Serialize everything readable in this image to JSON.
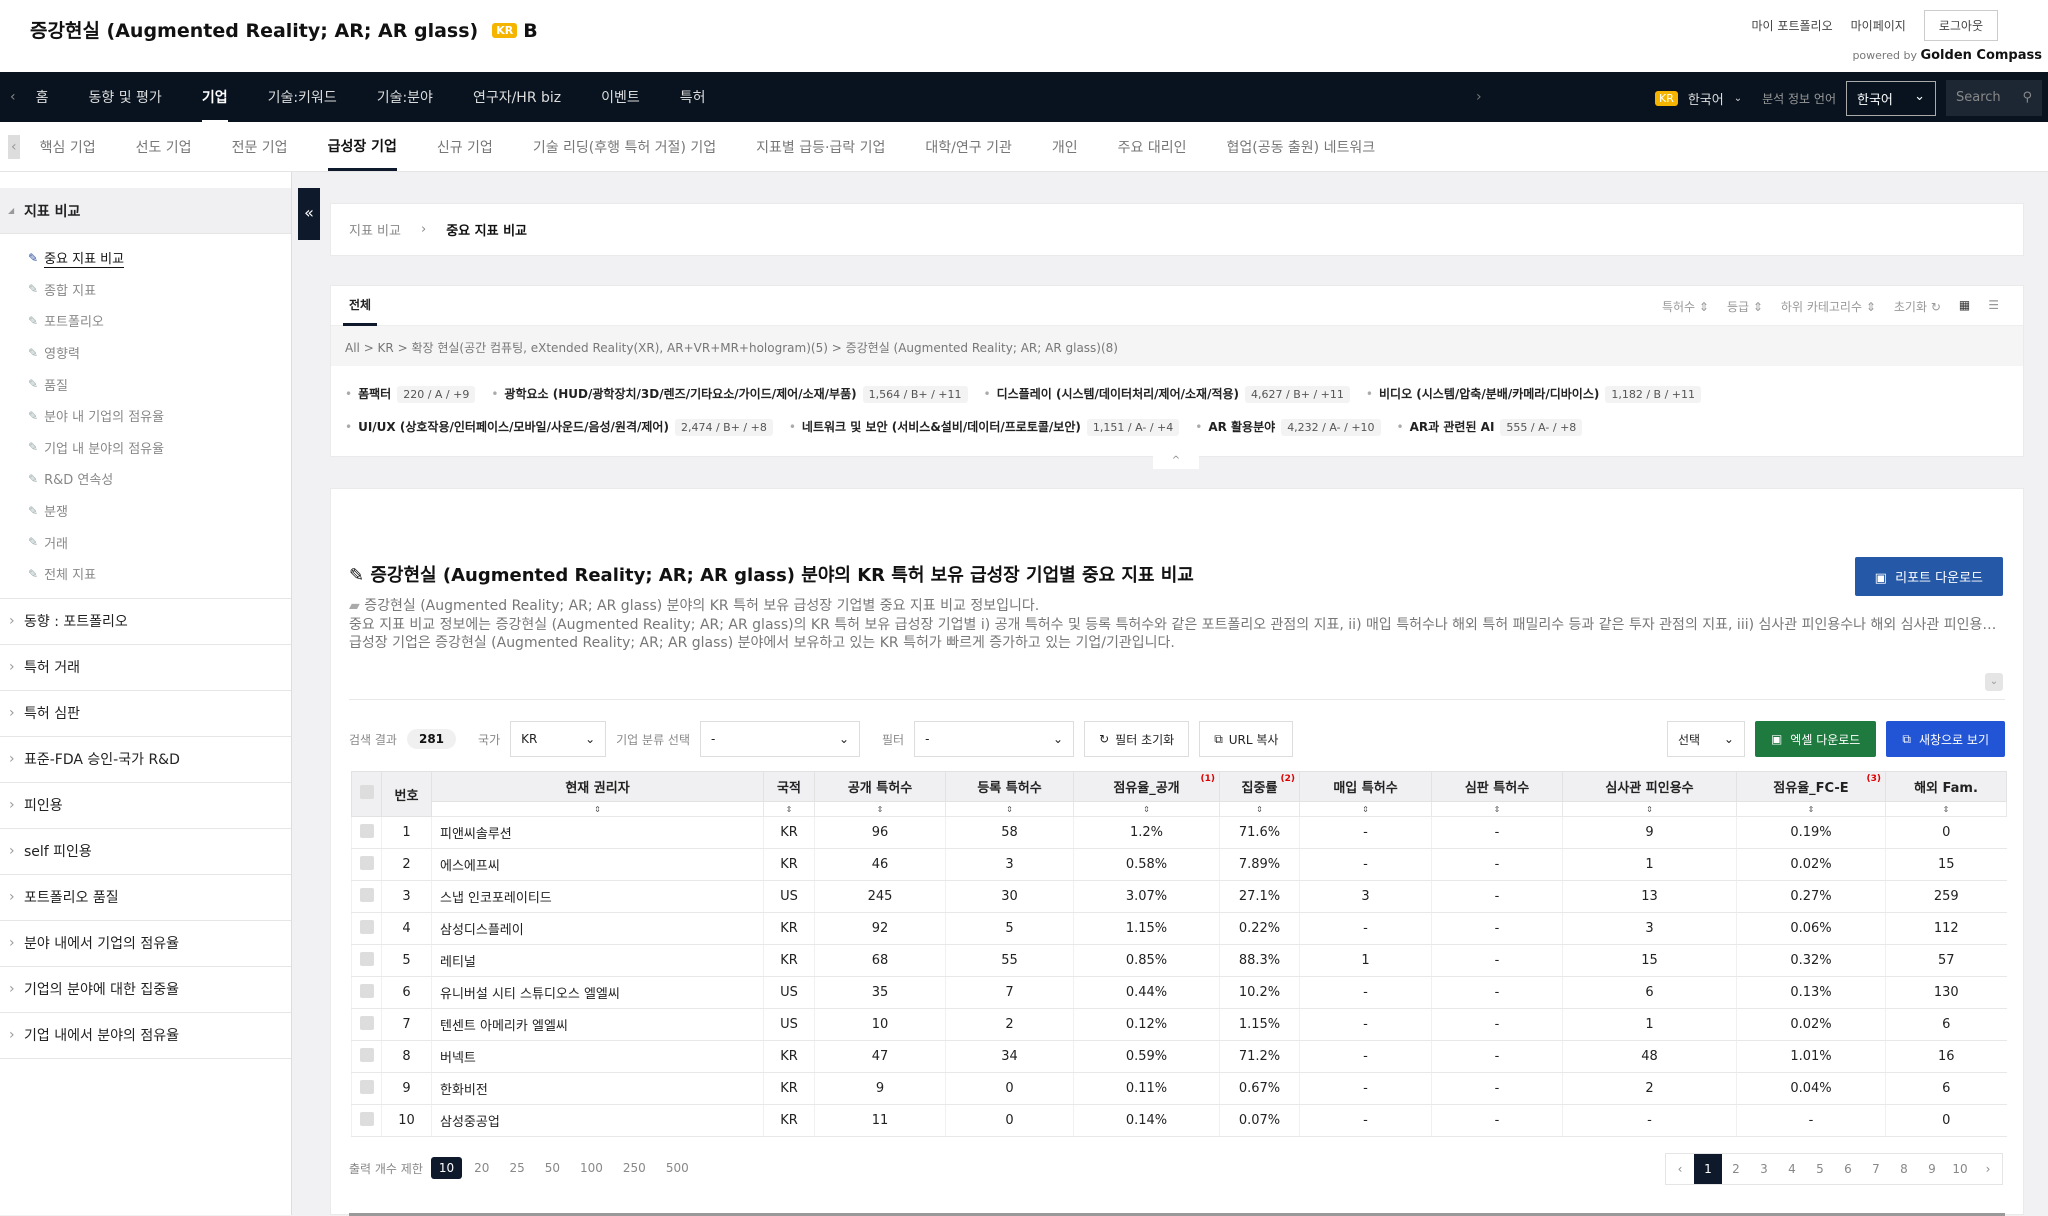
{
  "header": {
    "title": "증강현실 (Augmented Reality; AR; AR glass)",
    "country_badge": "KR",
    "grade": "B",
    "links": [
      "마이 포트폴리오",
      "마이페이지"
    ],
    "logout": "로그아웃",
    "powered_by": "powered by",
    "brand": "Golden Compass"
  },
  "nav": {
    "items": [
      "홈",
      "동향 및 평가",
      "기업",
      "기술:키워드",
      "기술:분야",
      "연구자/HR biz",
      "이벤트",
      "특허"
    ],
    "active": 2,
    "lang_badge": "KR",
    "lang": "한국어",
    "analysis_lang_label": "분석 정보 언어",
    "analysis_lang": "한국어",
    "search_placeholder": "Search"
  },
  "subnav": {
    "items": [
      "핵심 기업",
      "선도 기업",
      "전문 기업",
      "급성장 기업",
      "신규 기업",
      "기술 리딩(후행 특허 거절) 기업",
      "지표별 급등·급락 기업",
      "대학/연구 기관",
      "개인",
      "주요 대리인",
      "협업(공동 출원) 네트워크"
    ],
    "active": 3
  },
  "sidebar": {
    "group": "지표 비교",
    "items": [
      "중요 지표 비교",
      "종합 지표",
      "포트폴리오",
      "영향력",
      "품질",
      "분야 내 기업의 점유율",
      "기업 내 분야의 점유율",
      "R&D 연속성",
      "분쟁",
      "거래",
      "전체 지표"
    ],
    "active": 0,
    "groups": [
      "동향 : 포트폴리오",
      "특허 거래",
      "특허 심판",
      "표준-FDA 승인-국가 R&D",
      "피인용",
      "self 피인용",
      "포트폴리오 품질",
      "분야 내에서 기업의 점유율",
      "기업의 분야에 대한 집중율",
      "기업 내에서 분야의 점유율"
    ]
  },
  "breadcrumb": [
    "지표 비교",
    "중요 지표 비교"
  ],
  "tabs": {
    "all": "전체",
    "sorts": [
      "특허수 ⇕",
      "등급 ⇕",
      "하위 카테고리수 ⇕",
      "초기화 ↻"
    ],
    "path": "All  >  KR  >  확장 현실(공간 컴퓨팅, eXtended Reality(XR), AR+VR+MR+hologram)(5)  >  증강현실 (Augmented Reality; AR; AR glass)(8)"
  },
  "categories": [
    {
      "name": "폼팩터",
      "stat": "220 / A / +9"
    },
    {
      "name": "광학요소 (HUD/광학장치/3D/렌즈/기타요소/가이드/제어/소재/부품)",
      "stat": "1,564 / B+ / +11"
    },
    {
      "name": "디스플레이 (시스템/데이터처리/제어/소재/적용)",
      "stat": "4,627 / B+ / +11"
    },
    {
      "name": "비디오 (시스템/압축/분배/카메라/디바이스)",
      "stat": "1,182 / B / +11"
    },
    {
      "name": "UI/UX (상호작용/인터페이스/모바일/사운드/음성/원격/제어)",
      "stat": "2,474 / B+ / +8"
    },
    {
      "name": "네트워크 및 보안 (서비스&설비/데이터/프로토콜/보안)",
      "stat": "1,151 / A- / +4"
    },
    {
      "name": "AR 활용분야",
      "stat": "4,232 / A- / +10"
    },
    {
      "name": "AR과 관련된 AI",
      "stat": "555 / A- / +8"
    }
  ],
  "main": {
    "title": "증강현실 (Augmented Reality; AR; AR glass) 분야의 KR 특허 보유 급성장 기업별 중요 지표 비교",
    "report_button": "리포트 다운로드",
    "desc": [
      "증강현실 (Augmented Reality; AR; AR glass) 분야의 KR 특허 보유 급성장 기업별 중요 지표 비교 정보입니다.",
      "중요 지표 비교 정보에는 증강현실 (Augmented Reality; AR; AR glass)의 KR 특허 보유 급성장 기업별 i) 공개 특허수 및 등록 특허수와 같은 포트폴리오 관점의 지표, ii) 매입 특허수나 해외 특허 패밀리수 등과 같은 투자 관점의 지표, iii) 심사관 피인용수나 해외 심사관 피인용수 등과 같은 품질 관점의 지표 정보를 제공합니다.",
      "급성장 기업은 증강현실 (Augmented Reality; AR; AR glass) 분야에서 보유하고 있는 KR 특허가 빠르게 증가하고 있는 기업/기관입니다."
    ],
    "filters": {
      "result_label": "검색 결과",
      "result_count": "281",
      "country_label": "국가",
      "country": "KR",
      "class_label": "기업 분류 선택",
      "class": "-",
      "filter_label": "필터",
      "filter": "-",
      "reset": "필터 초기화",
      "url_copy": "URL 복사",
      "select": "선택",
      "excel": "엑셀 다운로드",
      "new_window": "새창으로 보기"
    }
  },
  "table": {
    "headers": [
      "번호",
      "현재 권리자",
      "국적",
      "공개 특허수",
      "등록 특허수",
      "점유율_공개",
      "집중률",
      "매입 특허수",
      "심판 특허수",
      "심사관 피인용수",
      "점유율_FC-E",
      "해외 Fam."
    ],
    "notes": {
      "5": "(1)",
      "6": "(2)",
      "10": "(3)"
    },
    "rows": [
      [
        "1",
        "피앤씨솔루션",
        "KR",
        "96",
        "58",
        "1.2%",
        "71.6%",
        "-",
        "-",
        "9",
        "0.19%",
        "0"
      ],
      [
        "2",
        "에스에프씨",
        "KR",
        "46",
        "3",
        "0.58%",
        "7.89%",
        "-",
        "-",
        "1",
        "0.02%",
        "15"
      ],
      [
        "3",
        "스냅 인코포레이티드",
        "US",
        "245",
        "30",
        "3.07%",
        "27.1%",
        "3",
        "-",
        "13",
        "0.27%",
        "259"
      ],
      [
        "4",
        "삼성디스플레이",
        "KR",
        "92",
        "5",
        "1.15%",
        "0.22%",
        "-",
        "-",
        "3",
        "0.06%",
        "112"
      ],
      [
        "5",
        "레티널",
        "KR",
        "68",
        "55",
        "0.85%",
        "88.3%",
        "1",
        "-",
        "15",
        "0.32%",
        "57"
      ],
      [
        "6",
        "유니버설 시티 스튜디오스 엘엘씨",
        "US",
        "35",
        "7",
        "0.44%",
        "10.2%",
        "-",
        "-",
        "6",
        "0.13%",
        "130"
      ],
      [
        "7",
        "텐센트 아메리카 엘엘씨",
        "US",
        "10",
        "2",
        "0.12%",
        "1.15%",
        "-",
        "-",
        "1",
        "0.02%",
        "6"
      ],
      [
        "8",
        "버넥트",
        "KR",
        "47",
        "34",
        "0.59%",
        "71.2%",
        "-",
        "-",
        "48",
        "1.01%",
        "16"
      ],
      [
        "9",
        "한화비전",
        "KR",
        "9",
        "0",
        "0.11%",
        "0.67%",
        "-",
        "-",
        "2",
        "0.04%",
        "6"
      ],
      [
        "10",
        "삼성중공업",
        "KR",
        "11",
        "0",
        "0.14%",
        "0.07%",
        "-",
        "-",
        "-",
        "-",
        "0"
      ]
    ]
  },
  "pagination": {
    "limit_label": "출력 개수 제한",
    "limits": [
      "10",
      "20",
      "25",
      "50",
      "100",
      "250",
      "500"
    ],
    "limit_active": 0,
    "pages": [
      "1",
      "2",
      "3",
      "4",
      "5",
      "6",
      "7",
      "8",
      "9",
      "10"
    ],
    "current": 0
  },
  "colors": {
    "nav_bg": "#08131f",
    "report": "#2559a8",
    "excel": "#1e7a3e",
    "new_window": "#2255d6",
    "badge": "#f5b400"
  }
}
